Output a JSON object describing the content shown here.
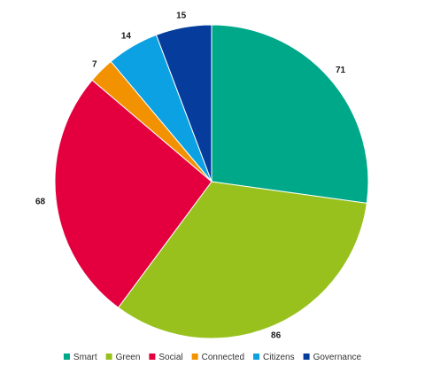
{
  "chart_data": {
    "type": "pie",
    "title": "",
    "categories": [
      "Smart",
      "Green",
      "Social",
      "Connected",
      "Citizens",
      "Governance"
    ],
    "values": [
      71,
      86,
      68,
      7,
      14,
      15
    ],
    "colors": [
      "#00a88a",
      "#98c11d",
      "#e4003f",
      "#f39200",
      "#0ba1e2",
      "#063d9d"
    ],
    "start_angle_deg": 0,
    "direction": "clockwise",
    "legend_position": "bottom"
  }
}
